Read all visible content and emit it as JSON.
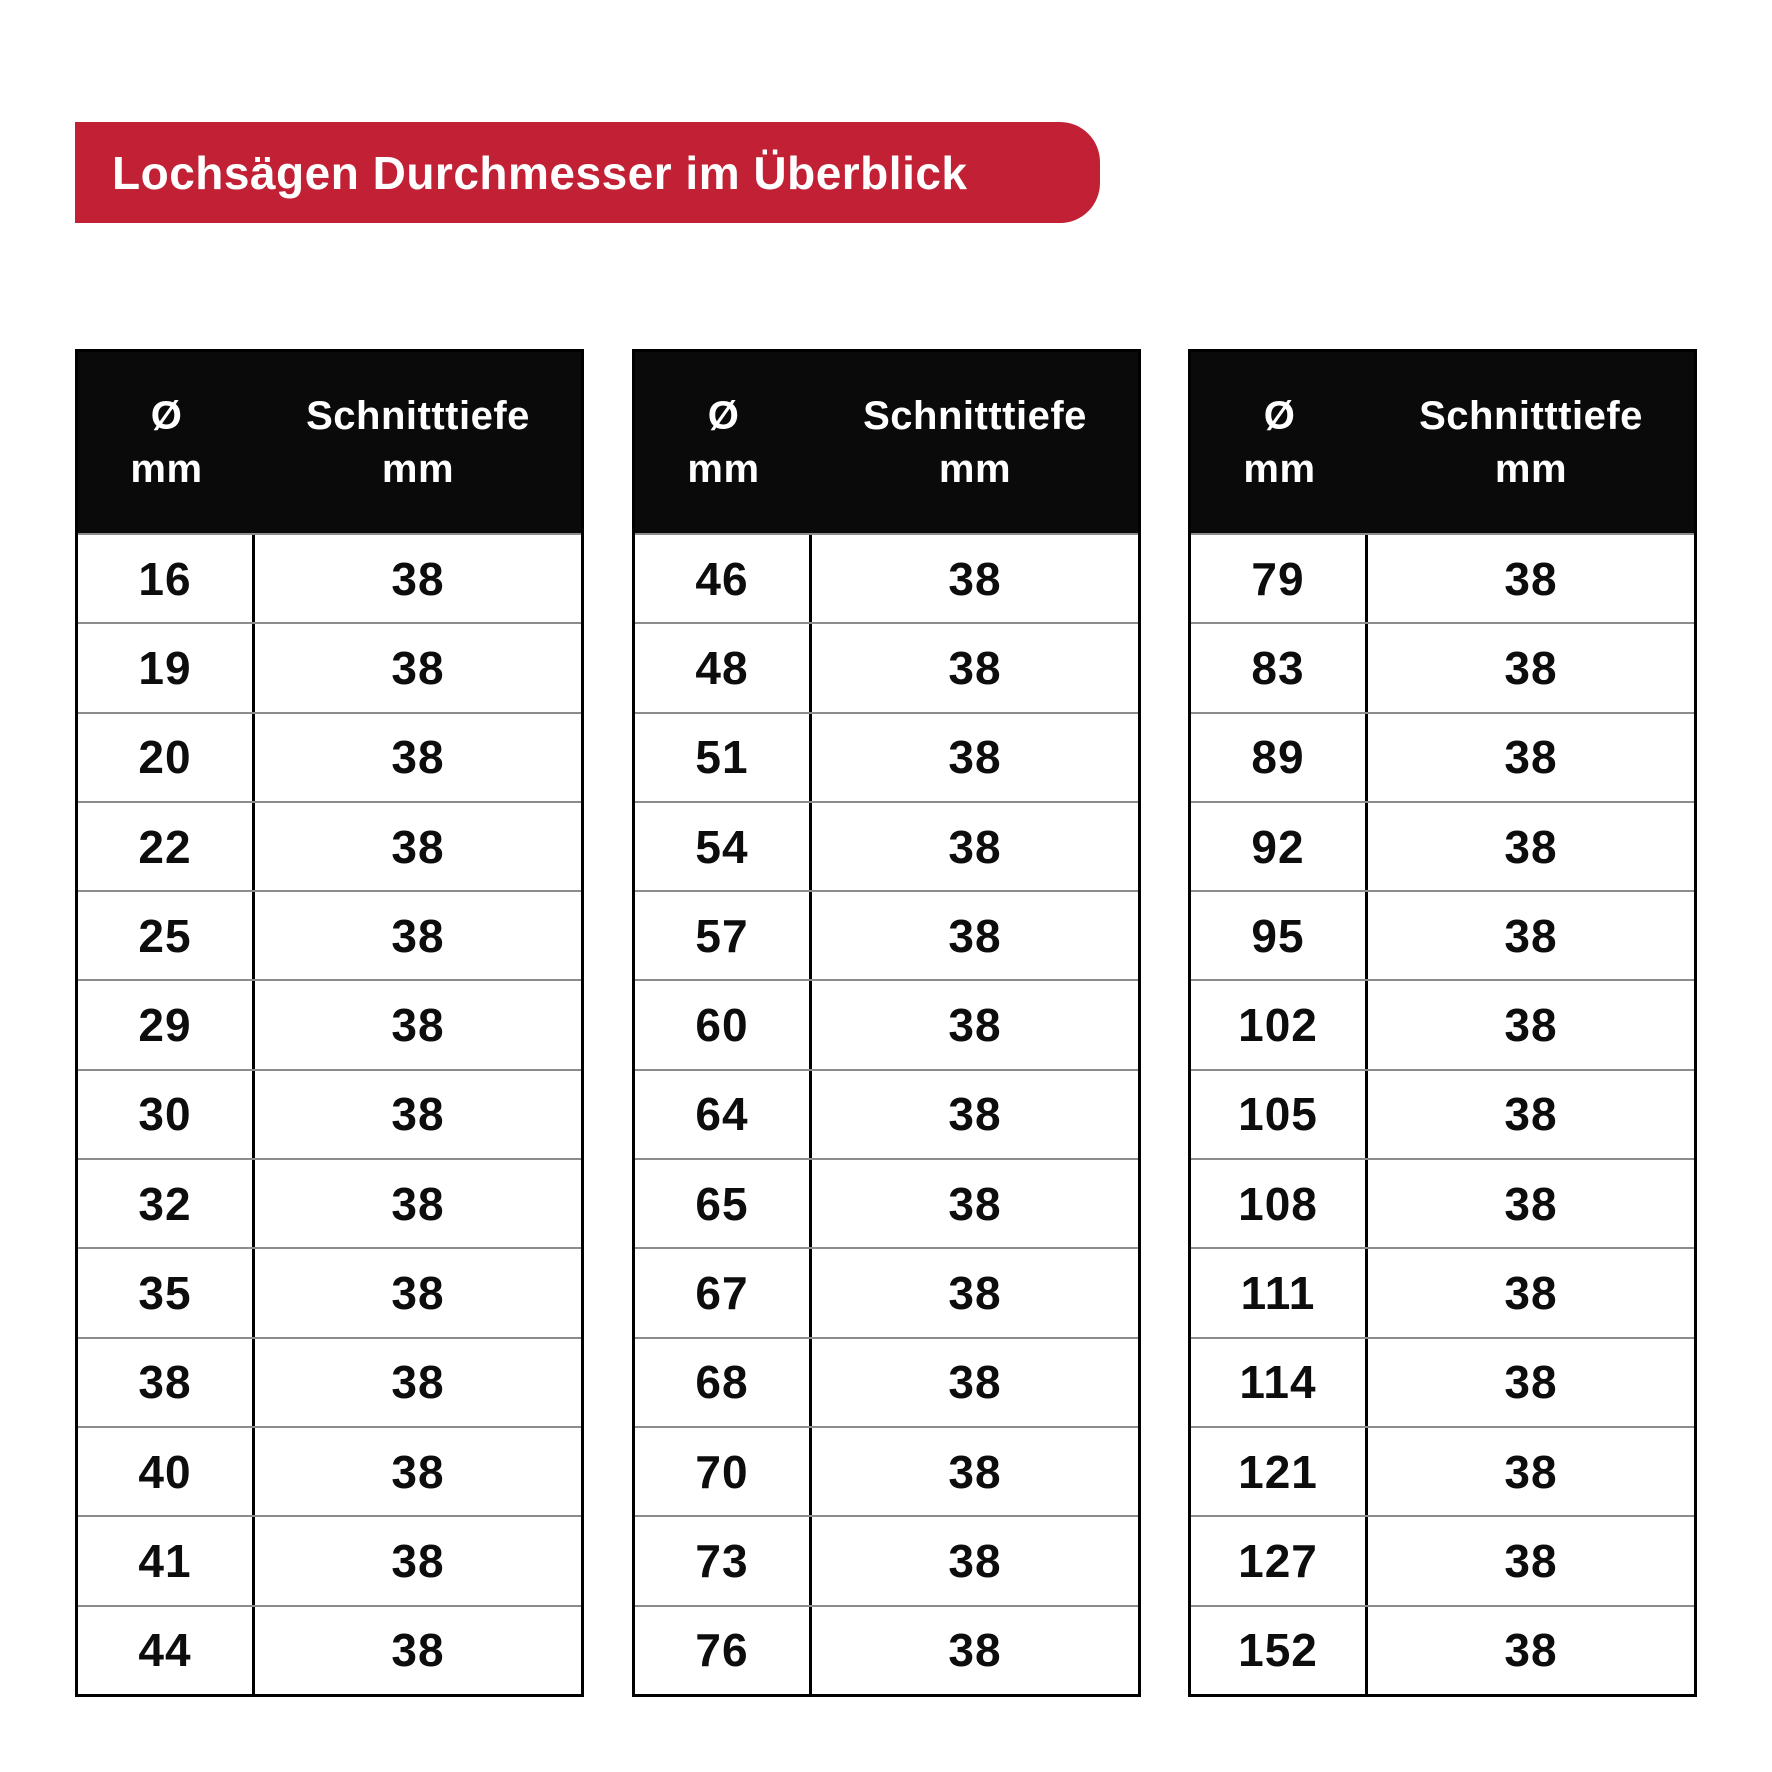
{
  "banner": {
    "title": "Lochsägen Durchmesser im Überblick",
    "bg_color": "#c22035",
    "text_color": "#ffffff"
  },
  "colors": {
    "table_header_bg": "#0a0a0a",
    "table_border": "#000000",
    "row_divider": "#8c8c8c",
    "page_bg": "#ffffff"
  },
  "chart_data": {
    "type": "table",
    "title": "Lochsägen Durchmesser im Überblick",
    "tables": [
      {
        "header": {
          "col1": "Ø",
          "col1_unit": "mm",
          "col2": "Schnitttiefe",
          "col2_unit": "mm"
        },
        "rows": [
          {
            "diameter": "16",
            "cut_depth": "38"
          },
          {
            "diameter": "19",
            "cut_depth": "38"
          },
          {
            "diameter": "20",
            "cut_depth": "38"
          },
          {
            "diameter": "22",
            "cut_depth": "38"
          },
          {
            "diameter": "25",
            "cut_depth": "38"
          },
          {
            "diameter": "29",
            "cut_depth": "38"
          },
          {
            "diameter": "30",
            "cut_depth": "38"
          },
          {
            "diameter": "32",
            "cut_depth": "38"
          },
          {
            "diameter": "35",
            "cut_depth": "38"
          },
          {
            "diameter": "38",
            "cut_depth": "38"
          },
          {
            "diameter": "40",
            "cut_depth": "38"
          },
          {
            "diameter": "41",
            "cut_depth": "38"
          },
          {
            "diameter": "44",
            "cut_depth": "38"
          }
        ]
      },
      {
        "header": {
          "col1": "Ø",
          "col1_unit": "mm",
          "col2": "Schnitttiefe",
          "col2_unit": "mm"
        },
        "rows": [
          {
            "diameter": "46",
            "cut_depth": "38"
          },
          {
            "diameter": "48",
            "cut_depth": "38"
          },
          {
            "diameter": "51",
            "cut_depth": "38"
          },
          {
            "diameter": "54",
            "cut_depth": "38"
          },
          {
            "diameter": "57",
            "cut_depth": "38"
          },
          {
            "diameter": "60",
            "cut_depth": "38"
          },
          {
            "diameter": "64",
            "cut_depth": "38"
          },
          {
            "diameter": "65",
            "cut_depth": "38"
          },
          {
            "diameter": "67",
            "cut_depth": "38"
          },
          {
            "diameter": "68",
            "cut_depth": "38"
          },
          {
            "diameter": "70",
            "cut_depth": "38"
          },
          {
            "diameter": "73",
            "cut_depth": "38"
          },
          {
            "diameter": "76",
            "cut_depth": "38"
          }
        ]
      },
      {
        "header": {
          "col1": "Ø",
          "col1_unit": "mm",
          "col2": "Schnitttiefe",
          "col2_unit": "mm"
        },
        "rows": [
          {
            "diameter": "79",
            "cut_depth": "38"
          },
          {
            "diameter": "83",
            "cut_depth": "38"
          },
          {
            "diameter": "89",
            "cut_depth": "38"
          },
          {
            "diameter": "92",
            "cut_depth": "38"
          },
          {
            "diameter": "95",
            "cut_depth": "38"
          },
          {
            "diameter": "102",
            "cut_depth": "38"
          },
          {
            "diameter": "105",
            "cut_depth": "38"
          },
          {
            "diameter": "108",
            "cut_depth": "38"
          },
          {
            "diameter": "111",
            "cut_depth": "38"
          },
          {
            "diameter": "114",
            "cut_depth": "38"
          },
          {
            "diameter": "121",
            "cut_depth": "38"
          },
          {
            "diameter": "127",
            "cut_depth": "38"
          },
          {
            "diameter": "152",
            "cut_depth": "38"
          }
        ]
      }
    ]
  }
}
